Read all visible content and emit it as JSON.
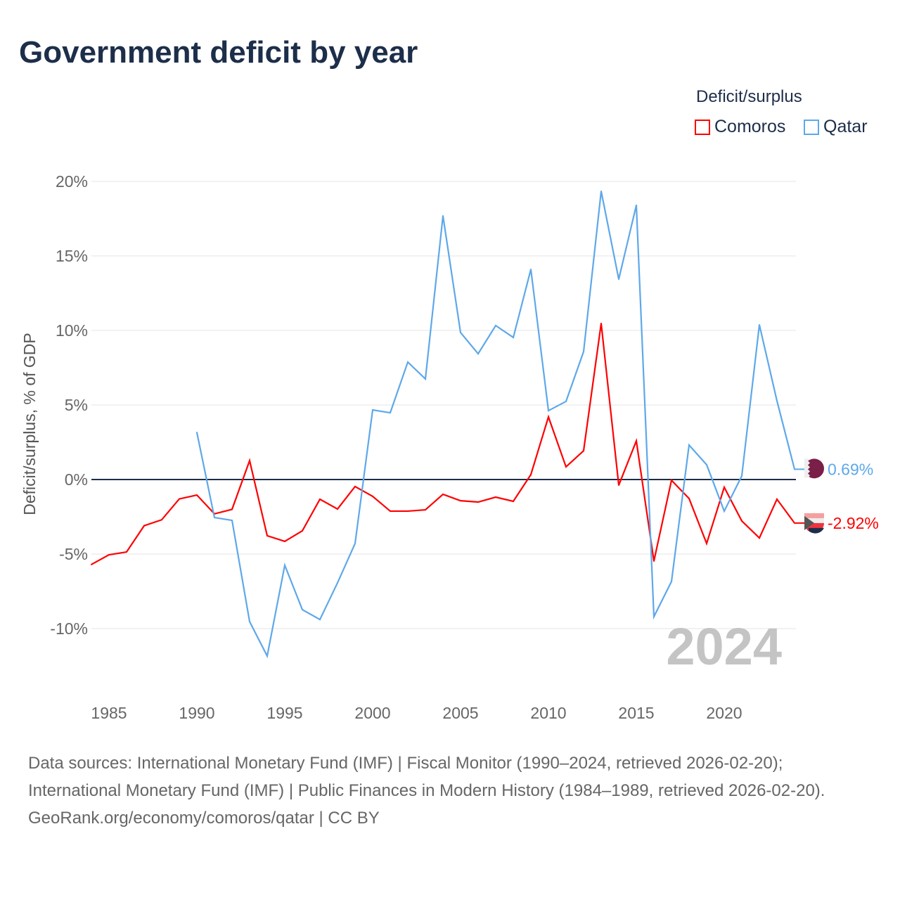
{
  "title": "Government deficit by year",
  "legend": {
    "title": "Deficit/surplus",
    "items": [
      "Comoros",
      "Qatar"
    ]
  },
  "year_watermark": "2024",
  "footer": {
    "sources": "Data sources: International Monetary Fund (IMF) | Fiscal Monitor (1990–2024, retrieved 2026-02-20); International Monetary Fund (IMF) | Public Finances in Modern History (1984–1989, retrieved 2026-02-20).",
    "credit": "GeoRank.org/economy/comoros/qatar | CC BY"
  },
  "chart_data": {
    "type": "line",
    "title": "Government deficit by year",
    "xlabel": "",
    "ylabel": "Deficit/surplus, % of GDP",
    "xlim": [
      1984,
      2024
    ],
    "ylim": [
      -12.5,
      20
    ],
    "xticks": [
      "1985",
      "1990",
      "1995",
      "2000",
      "2005",
      "2010",
      "2015",
      "2020"
    ],
    "yticks": [
      "20%",
      "15%",
      "10%",
      "5%",
      "0%",
      "-5%",
      "-10%"
    ],
    "series": [
      {
        "name": "Comoros",
        "color": "#ff0000",
        "end_label": "-2.92%",
        "start": 1984,
        "values": [
          -5.7,
          -5.05,
          -4.86,
          -3.1,
          -2.7,
          -1.3,
          -1.04,
          -2.3,
          -2.0,
          1.27,
          -3.77,
          -4.15,
          -3.44,
          -1.32,
          -1.98,
          -0.47,
          -1.13,
          -2.12,
          -2.12,
          -2.03,
          -0.99,
          -1.42,
          -1.51,
          -1.18,
          -1.46,
          0.33,
          4.2,
          0.85,
          1.93,
          10.47,
          -0.38,
          2.59,
          -5.47,
          -0.05,
          -1.27,
          -4.29,
          -0.52,
          -2.78,
          -3.92,
          -1.32,
          -2.92
        ]
      },
      {
        "name": "Qatar",
        "color": "#5ea8ea",
        "end_label": "0.69%",
        "start": 1990,
        "values": [
          3.16,
          -2.55,
          -2.74,
          -9.53,
          -11.84,
          -5.75,
          -8.73,
          -9.39,
          -6.93,
          -4.29,
          4.67,
          4.48,
          7.88,
          6.75,
          17.69,
          9.86,
          8.44,
          10.33,
          9.53,
          14.1,
          4.62,
          5.24,
          8.58,
          19.34,
          13.44,
          18.4,
          -9.2,
          -6.84,
          2.31,
          0.99,
          -2.12,
          0.24,
          10.38,
          5.28,
          0.69
        ]
      }
    ]
  }
}
